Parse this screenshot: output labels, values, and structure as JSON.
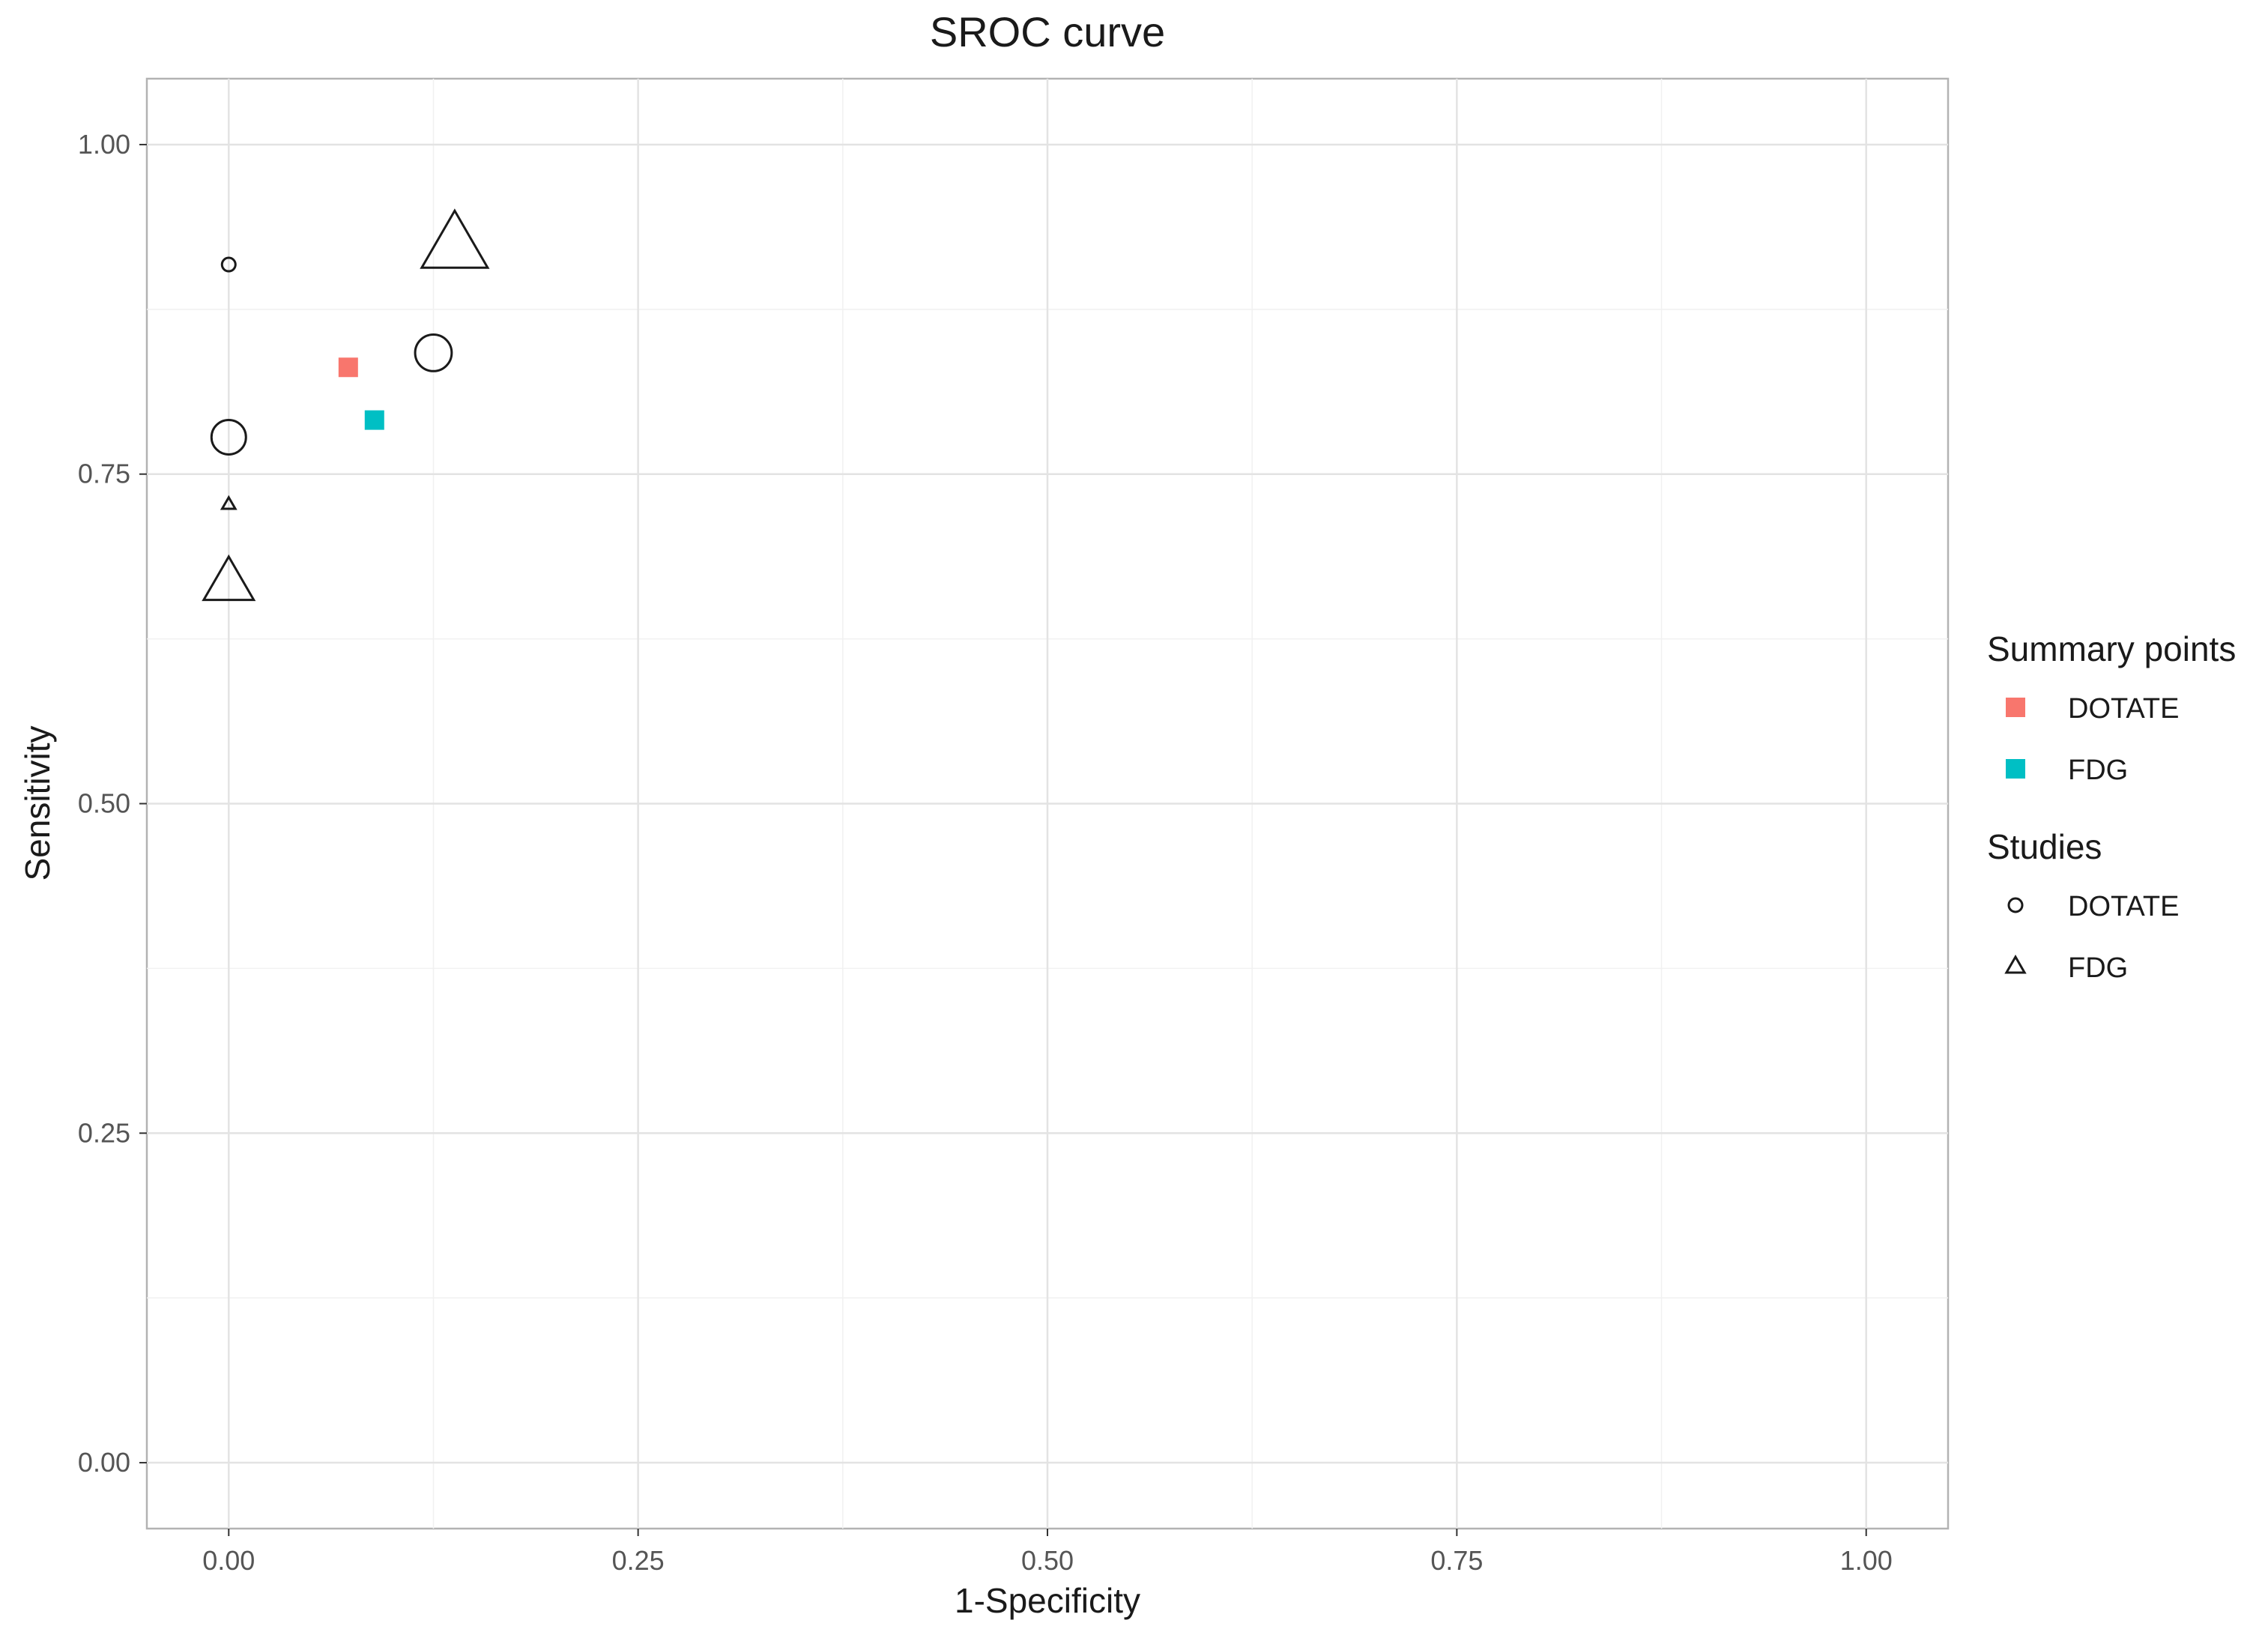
{
  "chart_data": {
    "type": "scatter",
    "title": "SROC curve",
    "xlabel": "1-Specificity",
    "ylabel": "Sensitivity",
    "xlim": [
      -0.05,
      1.05
    ],
    "ylim": [
      -0.05,
      1.05
    ],
    "x_ticks": [
      "0.00",
      "0.25",
      "0.50",
      "0.75",
      "1.00"
    ],
    "y_ticks": [
      "0.00",
      "0.25",
      "0.50",
      "0.75",
      "1.00"
    ],
    "x_tick_values": [
      0,
      0.25,
      0.5,
      0.75,
      1.0
    ],
    "y_tick_values": [
      0,
      0.25,
      0.5,
      0.75,
      1.0
    ],
    "grid": true,
    "legend_position": "right",
    "summary_points": {
      "legend_title": "Summary points",
      "series": [
        {
          "name": "DOTATE",
          "color": "#F8766D",
          "shape": "square",
          "x": 0.073,
          "y": 0.831
        },
        {
          "name": "FDG",
          "color": "#00BFC4",
          "shape": "square",
          "x": 0.089,
          "y": 0.791
        }
      ]
    },
    "studies": {
      "legend_title": "Studies",
      "series": [
        {
          "name": "DOTATE",
          "shape": "circle",
          "points": [
            {
              "x": 0.0,
              "y": 0.909,
              "size": 1
            },
            {
              "x": 0.0,
              "y": 0.778,
              "size": 3
            },
            {
              "x": 0.125,
              "y": 0.842,
              "size": 3.2
            }
          ]
        },
        {
          "name": "FDG",
          "shape": "triangle",
          "points": [
            {
              "x": 0.0,
              "y": 0.727,
              "size": 1
            },
            {
              "x": 0.0,
              "y": 0.667,
              "size": 3.8
            },
            {
              "x": 0.138,
              "y": 0.923,
              "size": 5
            }
          ]
        }
      ]
    }
  }
}
